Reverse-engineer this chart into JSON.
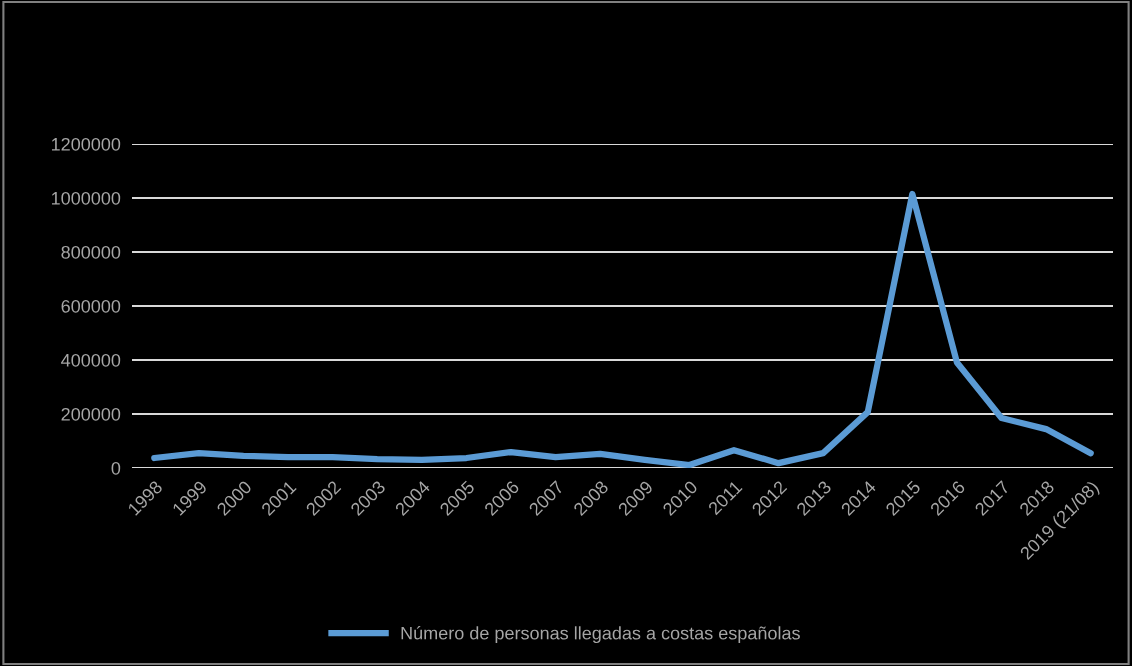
{
  "chart_data": {
    "type": "line",
    "categories": [
      "1998",
      "1999",
      "2000",
      "2001",
      "2002",
      "2003",
      "2004",
      "2005",
      "2006",
      "2007",
      "2008",
      "2009",
      "2010",
      "2011",
      "2012",
      "2013",
      "2014",
      "2015",
      "2016",
      "2017",
      "2018",
      "2019 (21/08)"
    ],
    "series": [
      {
        "name": "Número de personas llegadas a costas españolas",
        "color": "#5b9bd5",
        "values": [
          37000,
          55000,
          45000,
          40000,
          40000,
          33000,
          30000,
          37000,
          59000,
          40000,
          52000,
          30000,
          11000,
          66000,
          18000,
          55000,
          207000,
          1015000,
          391000,
          185000,
          144000,
          55000
        ]
      }
    ],
    "ylim": [
      0,
      1200000
    ],
    "yticks": [
      0,
      200000,
      400000,
      600000,
      800000,
      1000000,
      1200000
    ],
    "grid": "y",
    "legend": "bottom",
    "marker": "none",
    "line_style": "solid"
  }
}
